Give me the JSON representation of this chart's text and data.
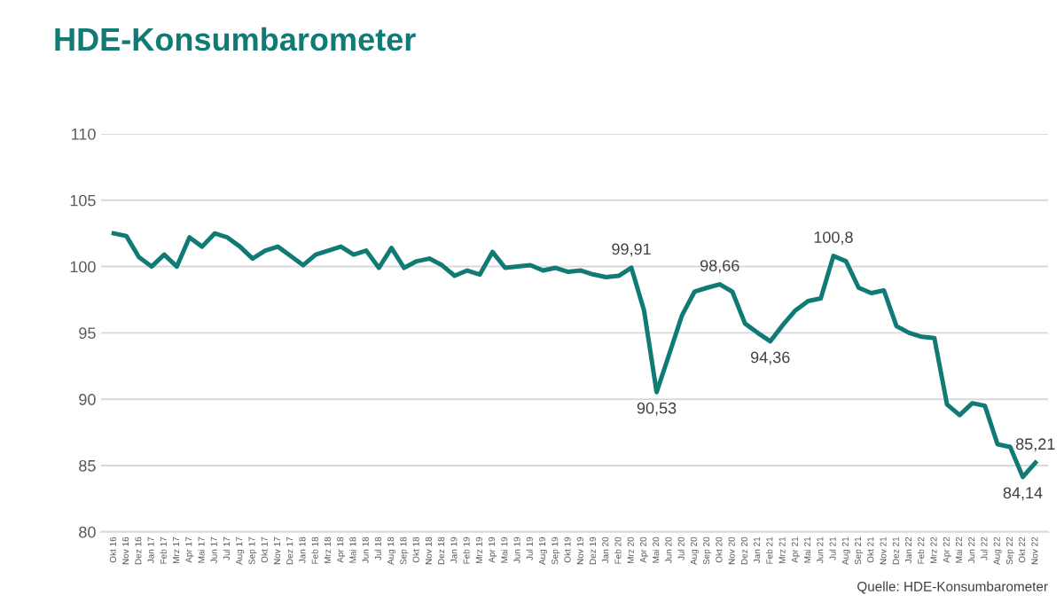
{
  "chart_data": {
    "type": "line",
    "title": "HDE-Konsumbarometer",
    "categories": [
      "Okt 16",
      "Nov 16",
      "Dez 16",
      "Jan 17",
      "Feb 17",
      "Mrz 17",
      "Apr 17",
      "Mai 17",
      "Jun 17",
      "Jul 17",
      "Aug 17",
      "Sep 17",
      "Okt 17",
      "Nov 17",
      "Dez 17",
      "Jan 18",
      "Feb 18",
      "Mrz 18",
      "Apr 18",
      "Mai 18",
      "Jun 18",
      "Jul 18",
      "Aug 18",
      "Sep 18",
      "Okt 18",
      "Nov 18",
      "Dez 18",
      "Jan 19",
      "Feb 19",
      "Mrz 19",
      "Apr 19",
      "Mai 19",
      "Jun 19",
      "Jul 19",
      "Aug 19",
      "Sep 19",
      "Okt 19",
      "Nov 19",
      "Dez 19",
      "Jan 20",
      "Feb 20",
      "Mrz 20",
      "Apr 20",
      "Mai 20",
      "Jun 20",
      "Jul 20",
      "Aug 20",
      "Sep 20",
      "Okt 20",
      "Nov 20",
      "Dez 20",
      "Jan 21",
      "Feb 21",
      "Mrz 21",
      "Apr 21",
      "Mai 21",
      "Jun 21",
      "Jul 21",
      "Aug 21",
      "Sep 21",
      "Okt 21",
      "Nov 21",
      "Dez 21",
      "Jan 22",
      "Feb 22",
      "Mrz 22",
      "Apr 22",
      "Mai 22",
      "Jun 22",
      "Jul 22",
      "Aug 22",
      "Sep 22",
      "Okt 22",
      "Nov 22"
    ],
    "series": [
      {
        "color": "#0f7b74",
        "values": [
          102.5,
          102.3,
          100.7,
          100,
          100.9,
          100,
          102.2,
          101.5,
          102.5,
          102.2,
          101.5,
          100.6,
          101.2,
          101.5,
          100.8,
          100.1,
          100.9,
          101.2,
          101.5,
          100.9,
          101.2,
          99.9,
          101.4,
          99.9,
          100.4,
          100.6,
          100.1,
          99.3,
          99.7,
          99.4,
          101.1,
          99.9,
          100,
          100.1,
          99.7,
          99.9,
          99.6,
          99.7,
          99.4,
          99.2,
          99.3,
          99.91,
          96.7,
          90.53,
          93.4,
          96.3,
          98.1,
          98.4,
          98.66,
          98.1,
          95.7,
          95.0,
          94.36,
          95.6,
          96.7,
          97.4,
          97.6,
          100.8,
          100.4,
          98.4,
          98.0,
          98.2,
          95.5,
          95.0,
          94.7,
          94.6,
          89.6,
          88.8,
          89.7,
          89.5,
          86.6,
          86.4,
          84.14,
          85.21
        ],
        "value_labels": [
          null,
          null,
          null,
          null,
          null,
          null,
          null,
          null,
          null,
          null,
          null,
          null,
          null,
          null,
          null,
          null,
          null,
          null,
          null,
          null,
          null,
          null,
          null,
          null,
          null,
          null,
          null,
          null,
          null,
          null,
          null,
          null,
          null,
          null,
          null,
          null,
          null,
          null,
          null,
          null,
          null,
          "99,91",
          null,
          "90,53",
          null,
          null,
          null,
          null,
          "98,66",
          null,
          null,
          null,
          "94,36",
          null,
          null,
          null,
          null,
          "100,8",
          null,
          null,
          null,
          null,
          null,
          null,
          null,
          null,
          null,
          null,
          null,
          null,
          null,
          null,
          "84,14",
          "85,21"
        ]
      }
    ],
    "ylim": [
      80,
      110
    ],
    "yticks": [
      80,
      85,
      90,
      95,
      100,
      105,
      110
    ],
    "grid": "y",
    "legend": false,
    "marker": "none",
    "line_style": "solid",
    "annotations": [
      "Quelle: HDE-Konsumbarometer"
    ]
  }
}
